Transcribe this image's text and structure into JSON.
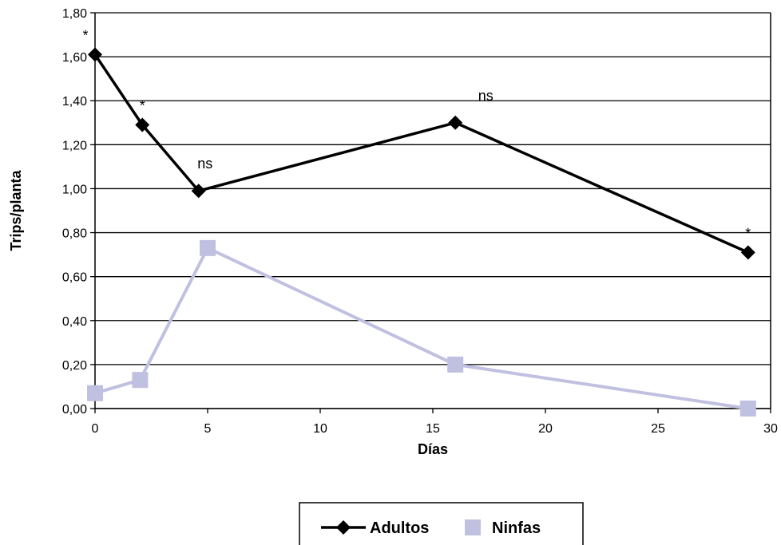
{
  "chart_data": {
    "type": "line",
    "xlabel": "Días",
    "ylabel": "Trips/planta",
    "xlim": [
      0,
      30
    ],
    "ylim": [
      0,
      1.8
    ],
    "x_ticks": [
      "0",
      "5",
      "10",
      "15",
      "20",
      "25",
      "30"
    ],
    "y_ticks": [
      "0,00",
      "0,20",
      "0,40",
      "0,60",
      "0,80",
      "1,00",
      "1,20",
      "1,40",
      "1,60",
      "1,80"
    ],
    "grid": "horizontal",
    "legend_position": "bottom",
    "series": [
      {
        "name": "Adultos",
        "color": "#000000",
        "marker": "diamond",
        "points": [
          {
            "x": 0,
            "y": 1.61,
            "annotation": "*"
          },
          {
            "x": 2.1,
            "y": 1.29,
            "annotation": "*"
          },
          {
            "x": 4.6,
            "y": 0.99,
            "annotation": "ns"
          },
          {
            "x": 16,
            "y": 1.3,
            "annotation": "ns"
          },
          {
            "x": 29,
            "y": 0.71,
            "annotation": "*"
          }
        ]
      },
      {
        "name": "Ninfas",
        "color": "#c0c0e0",
        "marker": "square",
        "points": [
          {
            "x": 0,
            "y": 0.07
          },
          {
            "x": 2,
            "y": 0.13
          },
          {
            "x": 5,
            "y": 0.73
          },
          {
            "x": 16,
            "y": 0.2
          },
          {
            "x": 29,
            "y": 0.0
          }
        ]
      }
    ]
  }
}
